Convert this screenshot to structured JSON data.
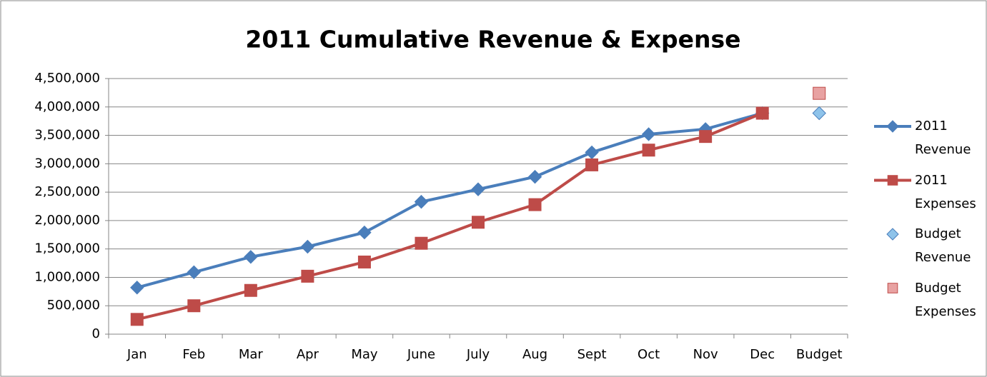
{
  "chart_data": {
    "type": "line",
    "title": "2011 Cumulative Revenue & Expense",
    "categories": [
      "Jan",
      "Feb",
      "Mar",
      "Apr",
      "May",
      "June",
      "July",
      "Aug",
      "Sept",
      "Oct",
      "Nov",
      "Dec",
      "Budget"
    ],
    "series": [
      {
        "name": "2011 Revenue",
        "color": "#4a7ebb",
        "marker": "diamond",
        "line": true,
        "values": [
          820000,
          1090000,
          1360000,
          1540000,
          1790000,
          2330000,
          2550000,
          2770000,
          3200000,
          3520000,
          3610000,
          3890000,
          null
        ]
      },
      {
        "name": "2011 Expenses",
        "color": "#be4b48",
        "marker": "square",
        "line": true,
        "values": [
          260000,
          500000,
          770000,
          1020000,
          1270000,
          1600000,
          1970000,
          2280000,
          2980000,
          3240000,
          3480000,
          3890000,
          null
        ]
      },
      {
        "name": "Budget Revenue",
        "color": "#8ec3ea",
        "marker": "diamond",
        "line": false,
        "values": [
          null,
          null,
          null,
          null,
          null,
          null,
          null,
          null,
          null,
          null,
          null,
          null,
          3890000
        ]
      },
      {
        "name": "Budget Expenses",
        "color": "#e8a2a2",
        "marker": "square",
        "line": false,
        "values": [
          null,
          null,
          null,
          null,
          null,
          null,
          null,
          null,
          null,
          null,
          null,
          null,
          4240000
        ]
      }
    ],
    "ylim": [
      0,
      4500000
    ],
    "yticks": [
      0,
      {
        "value": 500000,
        "label": "500,000"
      },
      {
        "value": 1000000,
        "label": "1,000,000"
      },
      {
        "value": 1500000,
        "label": "1,500,000"
      },
      {
        "value": 2000000,
        "label": "2,000,000"
      },
      {
        "value": 2500000,
        "label": "2,500,000"
      },
      {
        "value": 3000000,
        "label": "3,000,000"
      },
      {
        "value": 3500000,
        "label": "3,500,000"
      },
      {
        "value": 4000000,
        "label": "4,000,000"
      },
      {
        "value": 4500000,
        "label": "4,500,000"
      }
    ],
    "grid": true,
    "legend": "right"
  }
}
